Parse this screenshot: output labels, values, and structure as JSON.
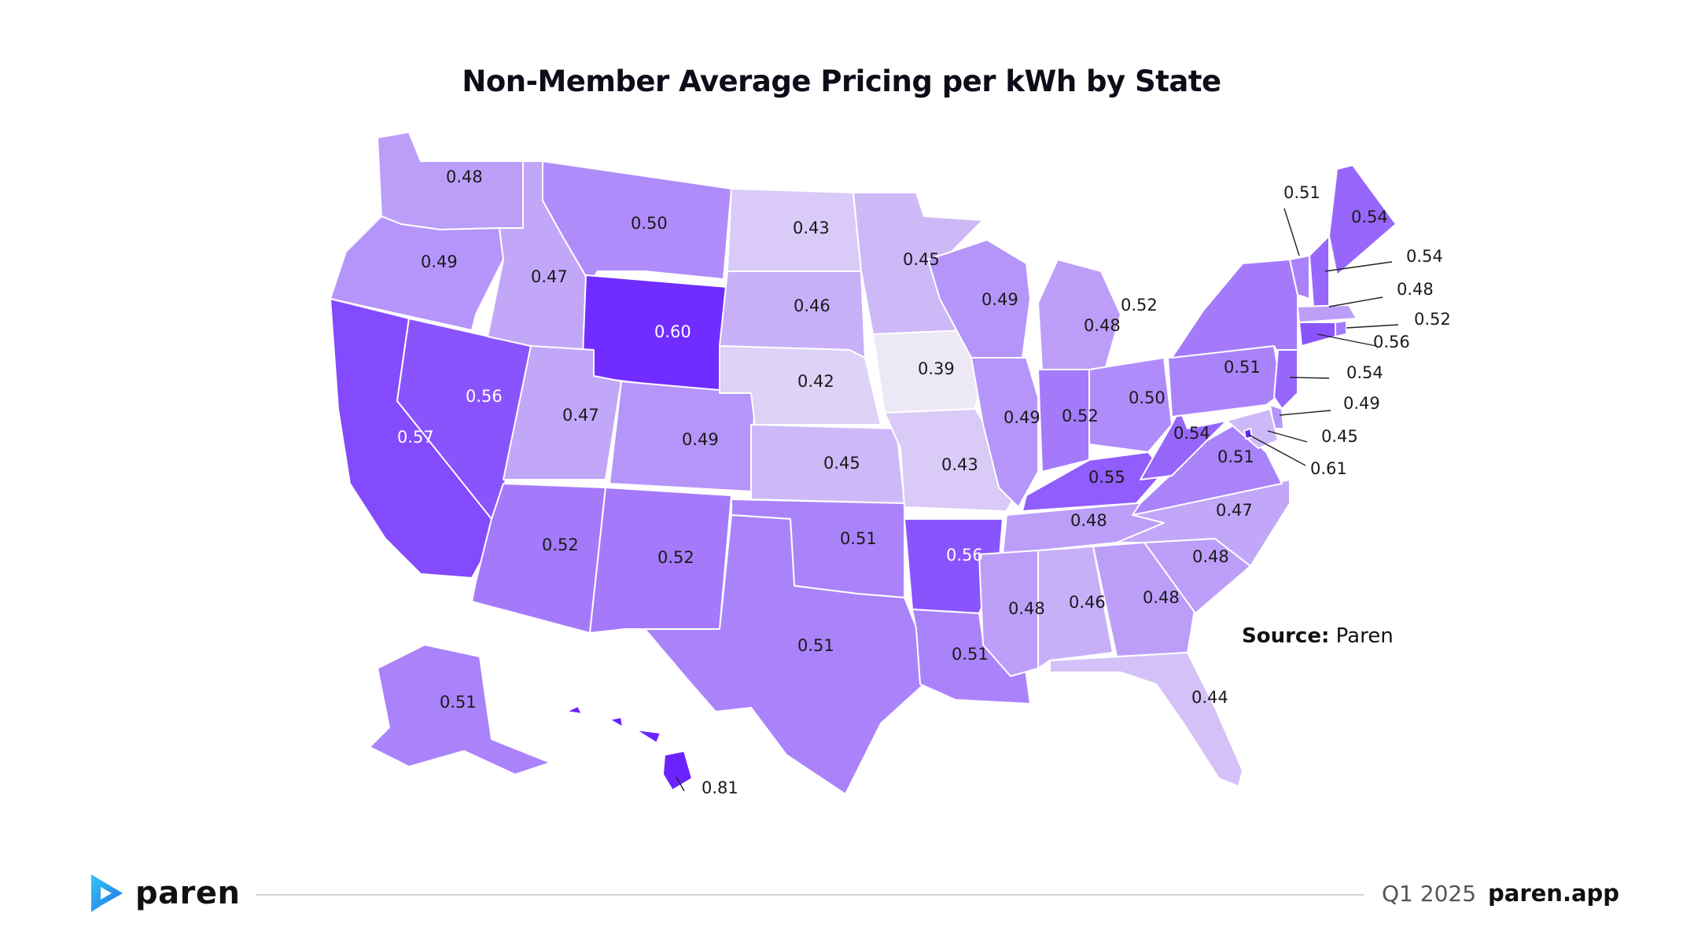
{
  "title": "Non-Member Average Pricing per kWh by State",
  "source": {
    "label": "Source:",
    "value": "Paren"
  },
  "footer": {
    "brand": "paren",
    "period": "Q1 2025",
    "site": "paren.app"
  },
  "colors": {
    "scale_low": "#ede8f6",
    "scale_high": "#6a23ff",
    "brand_blue_light": "#36c6f4",
    "brand_blue_dark": "#1f6fe8"
  },
  "map_data": {
    "type": "choropleth",
    "unit": "per kWh",
    "states": [
      {
        "state": "Washington",
        "value": 0.48
      },
      {
        "state": "Oregon",
        "value": 0.49
      },
      {
        "state": "California",
        "value": 0.57
      },
      {
        "state": "Nevada",
        "value": 0.56
      },
      {
        "state": "Idaho",
        "value": 0.47
      },
      {
        "state": "Montana",
        "value": 0.5
      },
      {
        "state": "Wyoming",
        "value": 0.6
      },
      {
        "state": "Utah",
        "value": 0.47
      },
      {
        "state": "Arizona",
        "value": 0.52
      },
      {
        "state": "Colorado",
        "value": 0.49
      },
      {
        "state": "New Mexico",
        "value": 0.52
      },
      {
        "state": "North Dakota",
        "value": 0.43
      },
      {
        "state": "South Dakota",
        "value": 0.46
      },
      {
        "state": "Nebraska",
        "value": 0.42
      },
      {
        "state": "Kansas",
        "value": 0.45
      },
      {
        "state": "Oklahoma",
        "value": 0.51
      },
      {
        "state": "Texas",
        "value": 0.51
      },
      {
        "state": "Minnesota",
        "value": 0.45
      },
      {
        "state": "Iowa",
        "value": 0.39
      },
      {
        "state": "Missouri",
        "value": 0.43
      },
      {
        "state": "Arkansas",
        "value": 0.56
      },
      {
        "state": "Louisiana",
        "value": 0.51
      },
      {
        "state": "Wisconsin",
        "value": 0.49
      },
      {
        "state": "Illinois",
        "value": 0.49
      },
      {
        "state": "Michigan",
        "value": 0.48
      },
      {
        "state": "Indiana",
        "value": 0.52
      },
      {
        "state": "Ohio",
        "value": 0.5
      },
      {
        "state": "Kentucky",
        "value": 0.55
      },
      {
        "state": "Tennessee",
        "value": 0.48
      },
      {
        "state": "Mississippi",
        "value": 0.48
      },
      {
        "state": "Alabama",
        "value": 0.46
      },
      {
        "state": "Georgia",
        "value": 0.48
      },
      {
        "state": "Florida",
        "value": 0.44
      },
      {
        "state": "South Carolina",
        "value": 0.48
      },
      {
        "state": "North Carolina",
        "value": 0.47
      },
      {
        "state": "Virginia",
        "value": 0.51
      },
      {
        "state": "West Virginia",
        "value": 0.54
      },
      {
        "state": "Pennsylvania",
        "value": 0.51
      },
      {
        "state": "New York",
        "value": 0.52
      },
      {
        "state": "Vermont",
        "value": 0.51
      },
      {
        "state": "New Hampshire",
        "value": 0.54
      },
      {
        "state": "Maine",
        "value": 0.54
      },
      {
        "state": "Massachusetts",
        "value": 0.48
      },
      {
        "state": "Rhode Island",
        "value": 0.52
      },
      {
        "state": "Connecticut",
        "value": 0.56
      },
      {
        "state": "New Jersey",
        "value": 0.54
      },
      {
        "state": "Delaware",
        "value": 0.49
      },
      {
        "state": "Maryland",
        "value": 0.45
      },
      {
        "state": "District of Columbia",
        "value": 0.61
      },
      {
        "state": "Alaska",
        "value": 0.51
      },
      {
        "state": "Hawaii",
        "value": 0.81
      }
    ]
  }
}
